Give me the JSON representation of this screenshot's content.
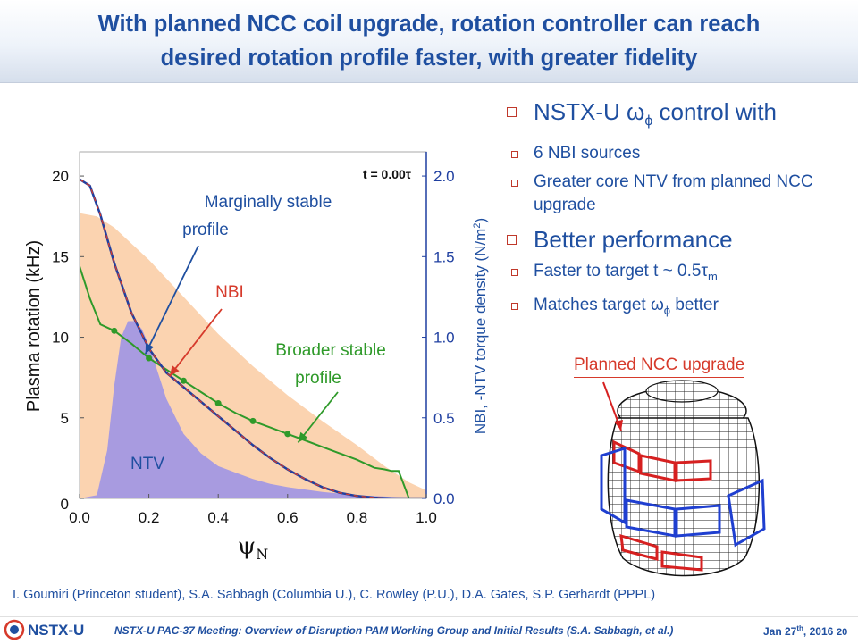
{
  "slide": {
    "title_line1": "With planned NCC coil upgrade, rotation controller can reach",
    "title_line2": "desired rotation profile faster, with greater fidelity"
  },
  "bullets": [
    {
      "text": "NSTX-U ω",
      "sub": "ϕ",
      "suffix": " control with",
      "level": 1
    },
    {
      "text": "6 NBI sources",
      "level": 2
    },
    {
      "text": "Greater core NTV from planned NCC upgrade",
      "level": 2
    },
    {
      "text": "Better performance",
      "level": 1
    },
    {
      "text": "Faster to target t ~ 0.5τ",
      "sub": "m",
      "level": 2
    },
    {
      "text": "Matches target ω",
      "sub": "ϕ",
      "suffix": " better",
      "level": 2
    }
  ],
  "ncc_label": "Planned NCC upgrade",
  "citation": "I. Goumiri (Princeton student), S.A. Sabbagh (Columbia U.), C. Rowley (P.U.), D.A. Gates, S.P. Gerhardt (PPPL)",
  "footer": {
    "logo": "NSTX-U",
    "meeting": "NSTX-U PAC-37 Meeting: Overview of Disruption PAM Working Group and Initial Results (S.A. Sabbagh, et al.)",
    "date": "Jan 27",
    "date_sup": "th",
    "date_year": ", 2016",
    "page": "20"
  },
  "chart_data": {
    "type": "line",
    "xlabel": "ψ",
    "xlabel_sub": "N",
    "ylabel": "Plasma rotation (kHz)",
    "y2label": "NBI, -NTV torque density (N/m",
    "y2label_sup": "2",
    "y2label_end": ")",
    "xlim": [
      0,
      1.0
    ],
    "ylim": [
      0,
      21.5
    ],
    "y2lim": [
      0,
      2.15
    ],
    "xticks": [
      "0.0",
      "0.2",
      "0.4",
      "0.6",
      "0.8",
      "1.0"
    ],
    "yticks": [
      "0",
      "5",
      "10",
      "15",
      "20"
    ],
    "y2ticks": [
      "0.0",
      "0.5",
      "1.0",
      "1.5",
      "2.0"
    ],
    "time_label": "t = 0.00τ",
    "colors": {
      "nbi": "#fbd3b0",
      "ntv": "#a89be0",
      "target": "#1f3fa0",
      "dashed": "#d63a2b",
      "broad": "#2f9a2a",
      "annot_blue": "#1f4fa0",
      "annot_red": "#d63a2b",
      "annot_green": "#2f9a2a"
    },
    "annotations": {
      "marginal_line1": "Marginally stable",
      "marginal_line2": "profile",
      "nbi": "NBI",
      "broad_line1": "Broader stable",
      "broad_line2": "profile",
      "ntv": "NTV"
    },
    "series": [
      {
        "key": "nbi",
        "style": "area",
        "axis": "y2",
        "x": [
          0.0,
          0.05,
          0.1,
          0.2,
          0.3,
          0.4,
          0.5,
          0.6,
          0.7,
          0.8,
          0.88,
          0.95,
          1.0
        ],
        "values": [
          1.77,
          1.75,
          1.68,
          1.48,
          1.25,
          1.02,
          0.82,
          0.64,
          0.48,
          0.33,
          0.2,
          0.1,
          0.05
        ]
      },
      {
        "key": "ntv",
        "style": "area",
        "axis": "y2",
        "x": [
          0.0,
          0.05,
          0.08,
          0.1,
          0.12,
          0.14,
          0.16,
          0.18,
          0.2,
          0.22,
          0.25,
          0.3,
          0.35,
          0.4,
          0.45,
          0.5,
          0.55,
          0.6,
          0.7,
          0.8,
          0.9,
          1.0
        ],
        "values": [
          0.0,
          0.02,
          0.3,
          0.7,
          1.0,
          1.1,
          1.1,
          1.05,
          0.95,
          0.82,
          0.62,
          0.4,
          0.28,
          0.2,
          0.16,
          0.12,
          0.09,
          0.07,
          0.04,
          0.02,
          0.01,
          0.0
        ]
      },
      {
        "key": "target",
        "style": "line",
        "axis": "y",
        "x": [
          0.0,
          0.03,
          0.06,
          0.1,
          0.15,
          0.2,
          0.25,
          0.3,
          0.35,
          0.4,
          0.45,
          0.5,
          0.55,
          0.6,
          0.65,
          0.7,
          0.75,
          0.8,
          0.85,
          0.9,
          0.95,
          1.0
        ],
        "values": [
          19.8,
          19.4,
          17.6,
          14.6,
          11.5,
          9.3,
          7.8,
          6.9,
          6.0,
          5.1,
          4.2,
          3.3,
          2.5,
          1.8,
          1.2,
          0.7,
          0.35,
          0.15,
          0.05,
          0.0,
          0.0,
          0.0
        ]
      },
      {
        "key": "broad",
        "style": "line",
        "axis": "y",
        "x": [
          0.0,
          0.03,
          0.06,
          0.1,
          0.15,
          0.2,
          0.25,
          0.3,
          0.35,
          0.4,
          0.45,
          0.5,
          0.55,
          0.6,
          0.65,
          0.7,
          0.75,
          0.8,
          0.85,
          0.88,
          0.9,
          0.92,
          0.95,
          1.0
        ],
        "values": [
          14.4,
          12.4,
          10.8,
          10.4,
          9.6,
          8.7,
          8.0,
          7.3,
          6.6,
          5.9,
          5.3,
          4.8,
          4.4,
          4.0,
          3.6,
          3.2,
          2.8,
          2.4,
          1.9,
          1.8,
          1.7,
          1.7,
          0.0,
          0.0
        ]
      }
    ],
    "markers": {
      "x": [
        0.1,
        0.2,
        0.3,
        0.4,
        0.5,
        0.6
      ],
      "values": [
        10.4,
        8.7,
        7.3,
        5.9,
        4.8,
        4.0
      ]
    }
  }
}
